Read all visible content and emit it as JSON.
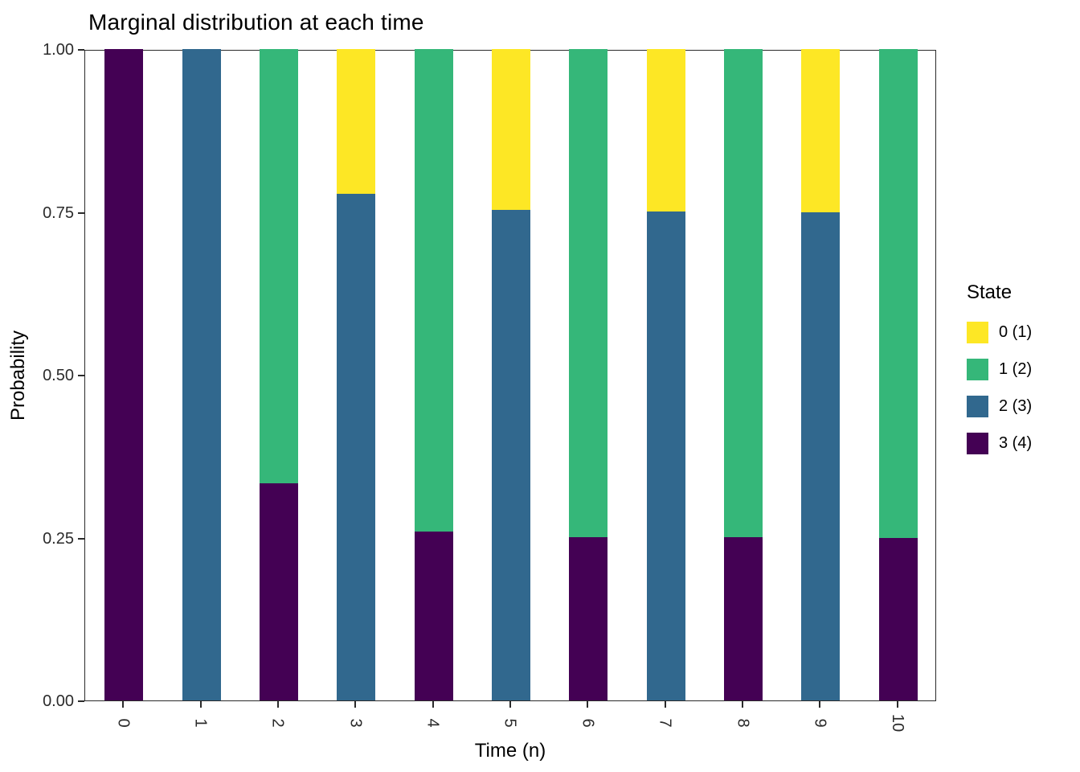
{
  "title": "Marginal distribution at each time",
  "axes": {
    "x_label": "Time (n)",
    "y_label": "Probability",
    "y_ticks": [
      "0.00",
      "0.25",
      "0.50",
      "0.75",
      "1.00"
    ],
    "x_ticks": [
      "0",
      "1",
      "2",
      "3",
      "4",
      "5",
      "6",
      "7",
      "8",
      "9",
      "10"
    ]
  },
  "legend": {
    "title": "State",
    "items": [
      {
        "label": "0 (1)",
        "color": "#FDE725"
      },
      {
        "label": "1 (2)",
        "color": "#35B779"
      },
      {
        "label": "2 (3)",
        "color": "#31688E"
      },
      {
        "label": "3 (4)",
        "color": "#440154"
      }
    ]
  },
  "chart_data": {
    "type": "bar",
    "stacked": true,
    "title": "Marginal distribution at each time",
    "xlabel": "Time (n)",
    "ylabel": "Probability",
    "ylim": [
      0,
      1
    ],
    "grid": false,
    "legend_position": "right",
    "categories": [
      0,
      1,
      2,
      3,
      4,
      5,
      6,
      7,
      8,
      9,
      10
    ],
    "series": [
      {
        "name": "0 (1)",
        "color": "#FDE725",
        "values": [
          0,
          0,
          0,
          0.2222,
          0,
          0.2469,
          0,
          0.2497,
          0,
          0.25,
          0
        ]
      },
      {
        "name": "1 (2)",
        "color": "#35B779",
        "values": [
          0,
          0,
          0.6667,
          0,
          0.7407,
          0,
          0.749,
          0,
          0.7499,
          0,
          0.75
        ]
      },
      {
        "name": "2 (3)",
        "color": "#31688E",
        "values": [
          0,
          1,
          0,
          0.7778,
          0,
          0.7531,
          0,
          0.7503,
          0,
          0.75,
          0
        ]
      },
      {
        "name": "3 (4)",
        "color": "#440154",
        "values": [
          1,
          0,
          0.3333,
          0,
          0.2593,
          0,
          0.251,
          0,
          0.2501,
          0,
          0.25
        ]
      }
    ],
    "stack_order_bottom_to_top": [
      "3 (4)",
      "2 (3)",
      "1 (2)",
      "0 (1)"
    ]
  }
}
